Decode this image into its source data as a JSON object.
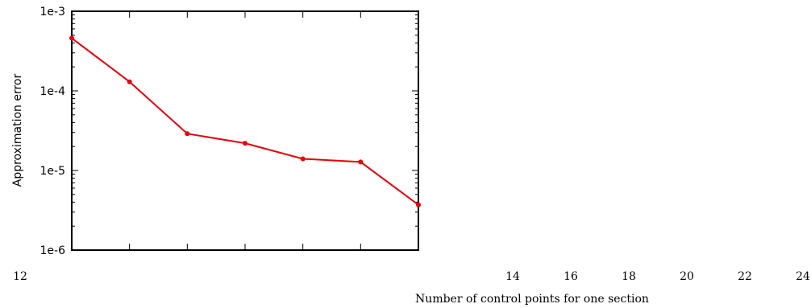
{
  "chart_data": {
    "type": "line",
    "title": "",
    "xlabel": "Number of control points for one section",
    "ylabel": "Approximation error",
    "yscale": "log",
    "ylim": [
      1e-06,
      0.001
    ],
    "xlim": [
      12,
      24
    ],
    "x_ticks": [
      "12",
      "14",
      "16",
      "18",
      "20",
      "22",
      "24"
    ],
    "y_ticks": [
      "1e-3",
      "1e-4",
      "1e-5",
      "1e-6"
    ],
    "grid": false,
    "legend": "none",
    "series": [
      {
        "color": "#e8000b",
        "x": [
          12,
          13,
          14,
          15,
          16,
          17,
          18
        ],
        "y": [
          0.00046,
          0.00013,
          2.9e-05,
          2.2e-05,
          1.4e-05,
          1.28e-05,
          3.7e-06
        ]
      }
    ]
  }
}
